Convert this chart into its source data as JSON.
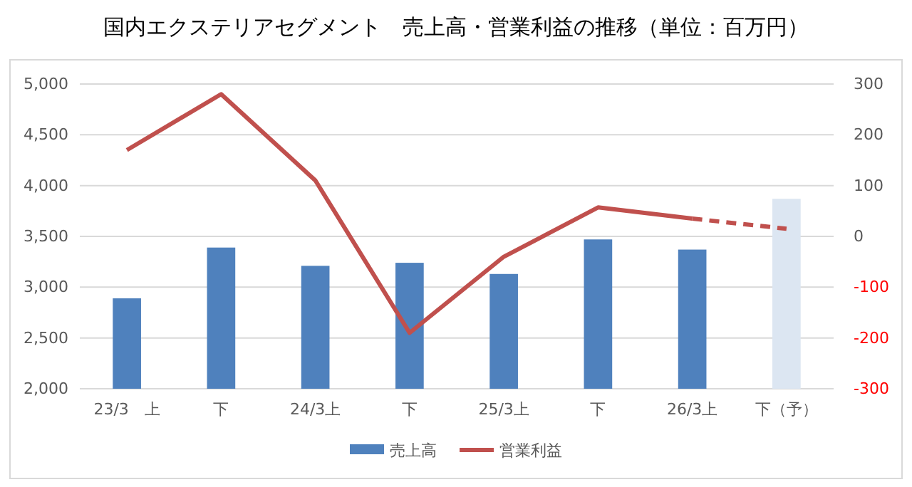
{
  "chart_data": {
    "type": "bar",
    "title": "国内エクステリアセグメント　売上高・営業利益の推移（単位：百万円）",
    "categories": [
      "23/3　上",
      "下",
      "24/3上",
      "下",
      "25/3上",
      "下",
      "26/3上",
      "下（予）"
    ],
    "series": [
      {
        "name": "売上高",
        "color": "#4f81bd",
        "colors": [
          "#4f81bd",
          "#4f81bd",
          "#4f81bd",
          "#4f81bd",
          "#4f81bd",
          "#4f81bd",
          "#4f81bd",
          "#dce6f2"
        ],
        "values": [
          2890,
          3390,
          3210,
          3240,
          3130,
          3470,
          3370,
          3870
        ]
      },
      {
        "name": "営業利益",
        "type": "line",
        "axis": "y2",
        "color": "#c0504d",
        "line_style": "solid",
        "values": [
          170,
          280,
          110,
          -190,
          -40,
          57,
          35,
          null
        ]
      },
      {
        "type": "line",
        "axis": "y2",
        "color": "#c0504d",
        "line_style": "dashed",
        "values": [
          null,
          null,
          null,
          null,
          null,
          null,
          35,
          15
        ]
      }
    ],
    "ylim": [
      2000,
      5000
    ],
    "yticks": [
      {
        "value": 2000,
        "label": "2,000"
      },
      {
        "value": 2500,
        "label": "2,500"
      },
      {
        "value": 3000,
        "label": "3,000"
      },
      {
        "value": 3500,
        "label": "3,500"
      },
      {
        "value": 4000,
        "label": "4,000"
      },
      {
        "value": 4500,
        "label": "4,500"
      },
      {
        "value": 5000,
        "label": "5,000"
      }
    ],
    "y2lim": [
      -300,
      300
    ],
    "y2ticks": [
      -300,
      -200,
      -100,
      0,
      100,
      200,
      300
    ],
    "grid": "y",
    "legend": "bottom",
    "marker": "none"
  }
}
